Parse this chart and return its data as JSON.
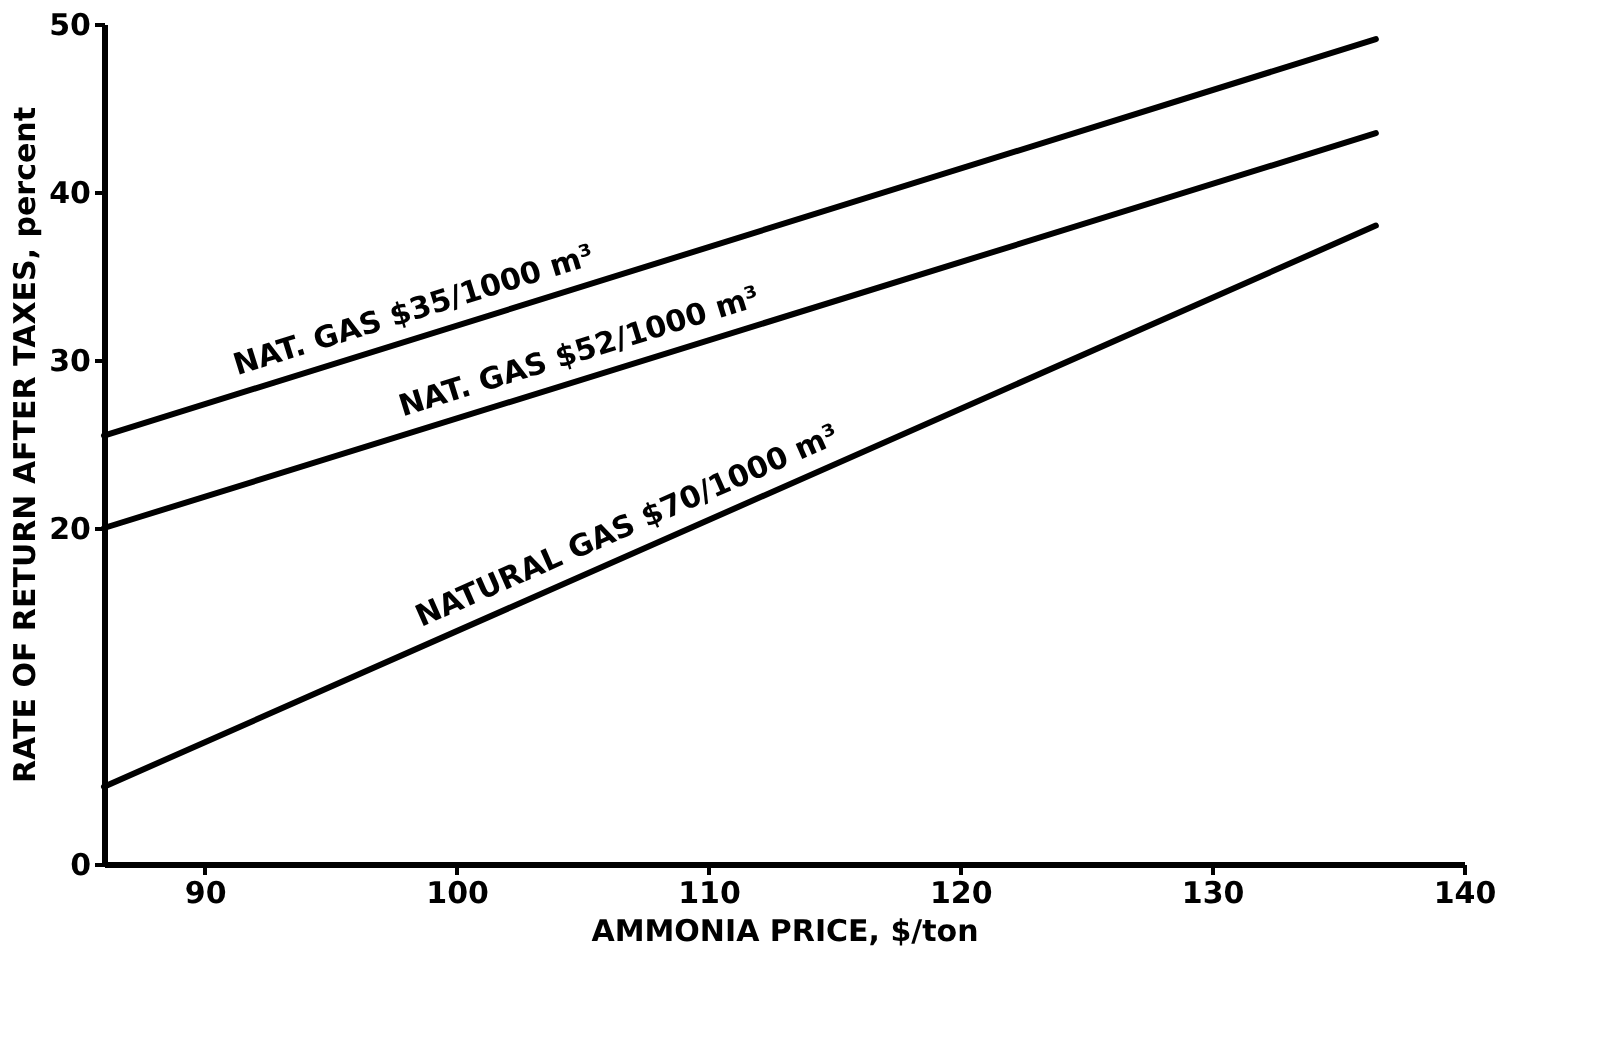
{
  "chart_data": {
    "type": "line",
    "xlabel": "AMMONIA PRICE, $/ton",
    "ylabel": "RATE OF RETURN AFTER TAXES, percent",
    "xlim": [
      86,
      140
    ],
    "xticks": [
      90,
      100,
      110,
      120,
      130,
      140
    ],
    "ylim": [
      0,
      50
    ],
    "yticks": [
      0,
      20,
      30,
      40,
      50
    ],
    "grid": false,
    "legend": false,
    "marker": "none",
    "line_style": "solid",
    "x": [
      86,
      136.5
    ],
    "series": [
      {
        "name": "NAT. GAS $35/1000 m³",
        "color": "#000000",
        "values": [
          25.5,
          49.1
        ]
      },
      {
        "name": "NAT. GAS  $52/1000 m³",
        "color": "#000000",
        "values": [
          20,
          43.5
        ]
      },
      {
        "name": "NATURAL GAS  $70/1000 m³",
        "color": "#000000",
        "values": [
          4.6,
          38.0
        ]
      }
    ]
  }
}
